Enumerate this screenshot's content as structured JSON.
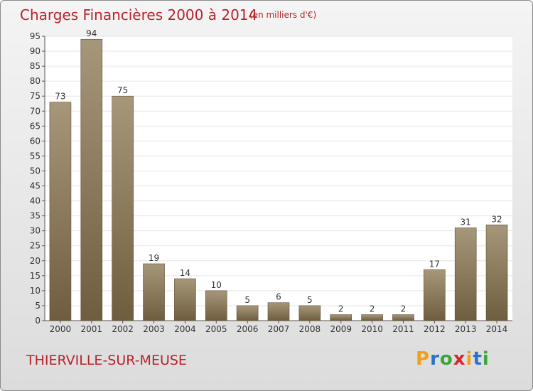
{
  "header": {
    "title": "Charges Financières 2000 à 2014",
    "subtitle": "(en milliers d'€)"
  },
  "footer": {
    "town": "THIERVILLE-SUR-MEUSE",
    "brand": {
      "letters": [
        "P",
        "r",
        "o",
        "x",
        "i",
        "t",
        "i"
      ],
      "colors": [
        "#f0a020",
        "#2a73c8",
        "#3aa53a",
        "#d6262e",
        "#f0a020",
        "#2a73c8",
        "#3aa53a"
      ]
    }
  },
  "chart_data": {
    "type": "bar",
    "title": "Charges Financières 2000 à 2014",
    "subtitle": "(en milliers d'€)",
    "categories": [
      "2000",
      "2001",
      "2002",
      "2003",
      "2004",
      "2005",
      "2006",
      "2007",
      "2008",
      "2009",
      "2010",
      "2011",
      "2012",
      "2013",
      "2014"
    ],
    "values": [
      73,
      94,
      75,
      19,
      14,
      10,
      5,
      6,
      5,
      2,
      2,
      2,
      17,
      31,
      32
    ],
    "ylim": [
      0,
      95
    ],
    "yticks": [
      0,
      5,
      10,
      15,
      20,
      25,
      30,
      35,
      40,
      45,
      50,
      55,
      60,
      65,
      70,
      75,
      80,
      85,
      90,
      95
    ],
    "grid": true,
    "bar_color_light": "#a7977a",
    "bar_color_dark": "#6f5d3f",
    "text_color": "#333333",
    "grid_color": "#e6e6e6"
  }
}
